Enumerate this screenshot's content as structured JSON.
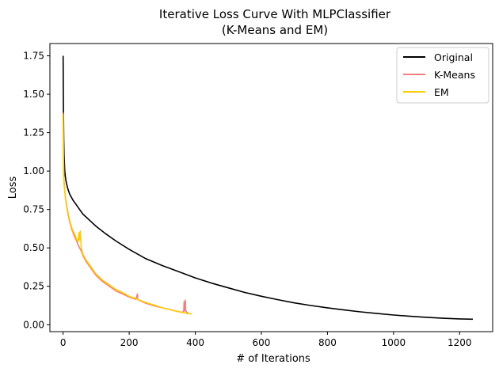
{
  "chart_data": {
    "type": "line",
    "title_lines": [
      "Iterative Loss Curve With MLPClassifier",
      "(K-Means and EM)"
    ],
    "xlabel": "# of Iterations",
    "ylabel": "Loss",
    "xlim": [
      -40,
      1300
    ],
    "ylim": [
      -0.045,
      1.83
    ],
    "xticks": [
      0,
      200,
      400,
      600,
      800,
      1000,
      1200
    ],
    "yticks": [
      0.0,
      0.25,
      0.5,
      0.75,
      1.0,
      1.25,
      1.5,
      1.75
    ],
    "xtick_labels": [
      "0",
      "200",
      "400",
      "600",
      "800",
      "1000",
      "1200"
    ],
    "ytick_labels": [
      "0.00",
      "0.25",
      "0.50",
      "0.75",
      "1.00",
      "1.25",
      "1.50",
      "1.75"
    ],
    "legend": {
      "position": "top-right",
      "entries": [
        "Original",
        "K-Means",
        "EM"
      ]
    },
    "series": [
      {
        "name": "Original",
        "color": "#000000",
        "x": [
          0,
          1,
          2,
          3,
          4,
          5,
          7,
          10,
          15,
          20,
          30,
          40,
          50,
          60,
          80,
          100,
          130,
          160,
          200,
          250,
          300,
          350,
          400,
          450,
          500,
          550,
          600,
          650,
          700,
          750,
          800,
          850,
          900,
          950,
          1000,
          1050,
          1100,
          1150,
          1200,
          1240
        ],
        "y": [
          1.75,
          1.38,
          1.2,
          1.1,
          1.04,
          1.0,
          0.96,
          0.92,
          0.88,
          0.85,
          0.81,
          0.78,
          0.75,
          0.72,
          0.68,
          0.64,
          0.59,
          0.545,
          0.49,
          0.43,
          0.385,
          0.345,
          0.305,
          0.27,
          0.24,
          0.21,
          0.185,
          0.163,
          0.142,
          0.125,
          0.11,
          0.096,
          0.084,
          0.073,
          0.063,
          0.055,
          0.048,
          0.042,
          0.038,
          0.036
        ]
      },
      {
        "name": "K-Means",
        "color": "#f08080",
        "x": [
          0,
          1,
          2,
          3,
          5,
          7,
          10,
          15,
          20,
          25,
          30,
          35,
          40,
          45,
          50,
          55,
          60,
          70,
          80,
          90,
          100,
          110,
          120,
          140,
          160,
          180,
          200,
          220,
          225,
          226,
          230,
          250,
          280,
          300,
          330,
          350,
          360,
          365,
          366,
          368,
          370,
          371,
          375,
          380
        ],
        "y": [
          1.38,
          1.15,
          1.0,
          0.93,
          0.87,
          0.83,
          0.78,
          0.72,
          0.67,
          0.63,
          0.6,
          0.57,
          0.55,
          0.52,
          0.5,
          0.48,
          0.45,
          0.41,
          0.38,
          0.35,
          0.32,
          0.3,
          0.28,
          0.25,
          0.22,
          0.2,
          0.18,
          0.165,
          0.2,
          0.165,
          0.16,
          0.14,
          0.12,
          0.11,
          0.095,
          0.085,
          0.08,
          0.09,
          0.15,
          0.09,
          0.16,
          0.09,
          0.08,
          0.075
        ]
      },
      {
        "name": "EM",
        "color": "#ffcc00",
        "x": [
          0,
          1,
          2,
          3,
          5,
          7,
          10,
          15,
          20,
          25,
          30,
          35,
          40,
          45,
          48,
          50,
          52,
          55,
          60,
          70,
          80,
          90,
          100,
          120,
          140,
          160,
          180,
          200,
          220,
          250,
          280,
          300,
          320,
          340,
          360,
          380,
          390
        ],
        "y": [
          1.37,
          1.1,
          0.98,
          0.92,
          0.87,
          0.83,
          0.79,
          0.73,
          0.68,
          0.64,
          0.61,
          0.59,
          0.56,
          0.54,
          0.6,
          0.55,
          0.61,
          0.5,
          0.46,
          0.42,
          0.39,
          0.36,
          0.33,
          0.29,
          0.26,
          0.23,
          0.21,
          0.185,
          0.17,
          0.145,
          0.125,
          0.11,
          0.1,
          0.09,
          0.08,
          0.072,
          0.07
        ]
      }
    ]
  }
}
